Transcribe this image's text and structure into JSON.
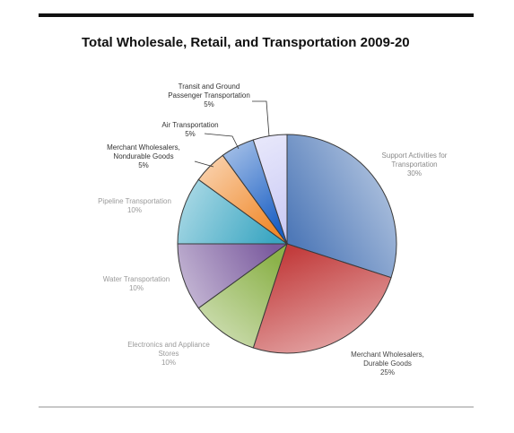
{
  "chart_data": {
    "type": "pie",
    "title": "Total Wholesale, Retail, and Transportation 2009-20",
    "slices": [
      {
        "label": [
          "Support Activities for",
          "Transportation"
        ],
        "value_label": "30%",
        "value": 30,
        "color": "#4f79b8",
        "label_color": "#8a8a8a"
      },
      {
        "label": [
          "Merchant Wholesalers,",
          "Durable Goods"
        ],
        "value_label": "25%",
        "value": 25,
        "color": "#c23c3c",
        "label_color": "#444444"
      },
      {
        "label": [
          "Electronics and Appliance",
          "Stores"
        ],
        "value_label": "10%",
        "value": 10,
        "color": "#8cb24a",
        "label_color": "#9a9a9a"
      },
      {
        "label": [
          "Water Transportation"
        ],
        "value_label": "10%",
        "value": 10,
        "color": "#7a5a9e",
        "label_color": "#9a9a9a"
      },
      {
        "label": [
          "Pipeline Transportation"
        ],
        "value_label": "10%",
        "value": 10,
        "color": "#3aa6c2",
        "label_color": "#9a9a9a"
      },
      {
        "label": [
          "Merchant Wholesalers,",
          "Nondurable Goods"
        ],
        "value_label": "5%",
        "value": 5,
        "color": "#f08a2c",
        "label_color": "#333333"
      },
      {
        "label": [
          "Air Transportation"
        ],
        "value_label": "5%",
        "value": 5,
        "color": "#1a5fc4",
        "label_color": "#333333"
      },
      {
        "label": [
          "Transit and Ground",
          "Passenger Transportation"
        ],
        "value_label": "5%",
        "value": 5,
        "color": "#c9c9f5",
        "label_color": "#333333"
      }
    ]
  }
}
